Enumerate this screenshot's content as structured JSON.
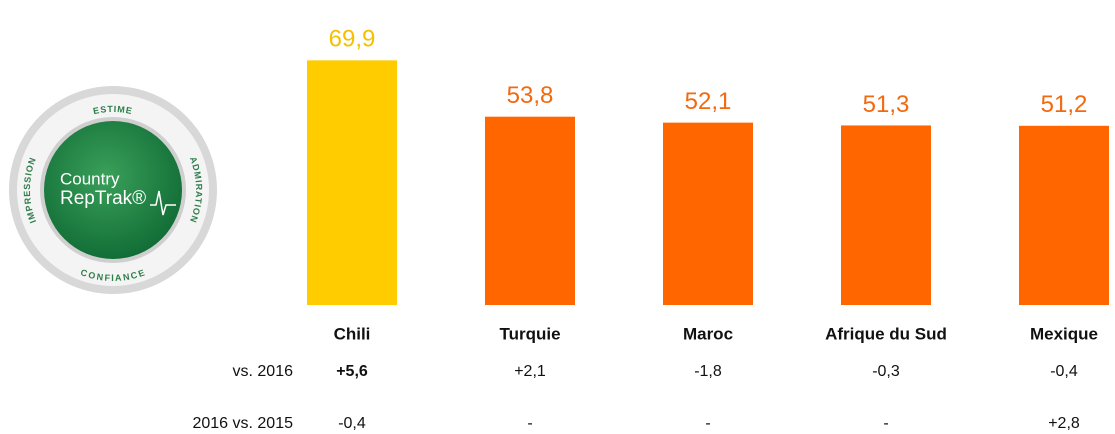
{
  "logo": {
    "ring": [
      "ESTIME",
      "ADMIRATION",
      "CONFIANCE",
      "IMPRESSION"
    ],
    "line1": "Country",
    "line2": "RepTrak®"
  },
  "chart_data": {
    "type": "bar",
    "categories": [
      "Chili",
      "Turquie",
      "Maroc",
      "Afrique du Sud",
      "Mexique"
    ],
    "values": [
      69.9,
      53.8,
      52.1,
      51.3,
      51.2
    ],
    "value_labels": [
      "69,9",
      "53,8",
      "52,1",
      "51,3",
      "51,2"
    ],
    "colors": [
      "#FFCC00",
      "#FF6600",
      "#FF6600",
      "#FF6600",
      "#FF6600"
    ],
    "label_colors": [
      "#F5C000",
      "#F26A10",
      "#F26A10",
      "#F26A10",
      "#F26A10"
    ],
    "rows": [
      {
        "label": "vs. 2016",
        "values": [
          5.6,
          2.1,
          -1.8,
          -0.3,
          -0.4
        ],
        "value_labels": [
          "+5,6",
          "+2,1",
          "-1,8",
          "-0,3",
          "-0,4"
        ],
        "highlight": {
          "index": 0,
          "color": "#8CC63F"
        }
      },
      {
        "label": "2016 vs. 2015",
        "values": [
          -0.4,
          null,
          null,
          null,
          2.8
        ],
        "value_labels": [
          "-0,4",
          "-",
          "-",
          "-",
          "+2,8"
        ]
      }
    ]
  }
}
